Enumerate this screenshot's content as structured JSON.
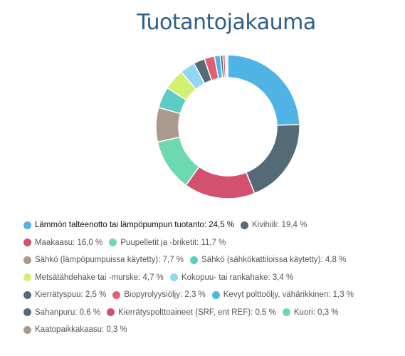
{
  "chart_data": {
    "type": "pie",
    "variant": "donut",
    "title": "Tuotantojakauma",
    "unit": "%",
    "legend_position": "bottom",
    "slices": [
      {
        "label": "Lämmön talteenotto tai lämpöpumpun tuotanto",
        "value": 24.5,
        "value_text": "24,5 %",
        "color": "#4fb3e6"
      },
      {
        "label": "Kivihiili",
        "value": 19.4,
        "value_text": "19,4 %",
        "color": "#546b76"
      },
      {
        "label": "Maakaasu",
        "value": 16.0,
        "value_text": "16,0 %",
        "color": "#d4506f"
      },
      {
        "label": "Puupelletit ja -briketit",
        "value": 11.7,
        "value_text": "11,7 %",
        "color": "#6dd9b0"
      },
      {
        "label": "Sähkö (lämpöpumpuissa käytetty)",
        "value": 7.7,
        "value_text": "7,7 %",
        "color": "#aa998c"
      },
      {
        "label": "Sähkö (sähkökattiloissa käytetty)",
        "value": 4.8,
        "value_text": "4,8 %",
        "color": "#5ccdc4"
      },
      {
        "label": "Metsätähdehake tai -murske",
        "value": 4.7,
        "value_text": "4,7 %",
        "color": "#d4f070"
      },
      {
        "label": "Kokopuu- tai rankahake",
        "value": 3.4,
        "value_text": "3,4 %",
        "color": "#8ed8f5"
      },
      {
        "label": "Kierrätyspuu",
        "value": 2.5,
        "value_text": "2,5 %",
        "color": "#546b76"
      },
      {
        "label": "Biopyrolyysiöljy",
        "value": 2.3,
        "value_text": "2,3 %",
        "color": "#e06070"
      },
      {
        "label": "Kevyt polttoöljy, vähärikkinen",
        "value": 1.3,
        "value_text": "1,3 %",
        "color": "#4fb3e6"
      },
      {
        "label": "Sahanpuru",
        "value": 0.6,
        "value_text": "0,6 %",
        "color": "#546b76"
      },
      {
        "label": "Kierrätyspolttoaineet (SRF, ent REF)",
        "value": 0.5,
        "value_text": "0,5 %",
        "color": "#d4506f"
      },
      {
        "label": "Kuori",
        "value": 0.3,
        "value_text": "0,3 %",
        "color": "#6dd9b0"
      },
      {
        "label": "Kaatopaikkakaasu",
        "value": 0.3,
        "value_text": "0,3 %",
        "color": "#aa998c"
      }
    ],
    "legend_rows": [
      [
        0,
        1
      ],
      [
        2,
        3
      ],
      [
        4,
        5
      ],
      [
        6,
        7
      ],
      [
        8,
        9,
        10
      ],
      [
        11,
        12,
        13
      ],
      [
        14
      ]
    ]
  }
}
